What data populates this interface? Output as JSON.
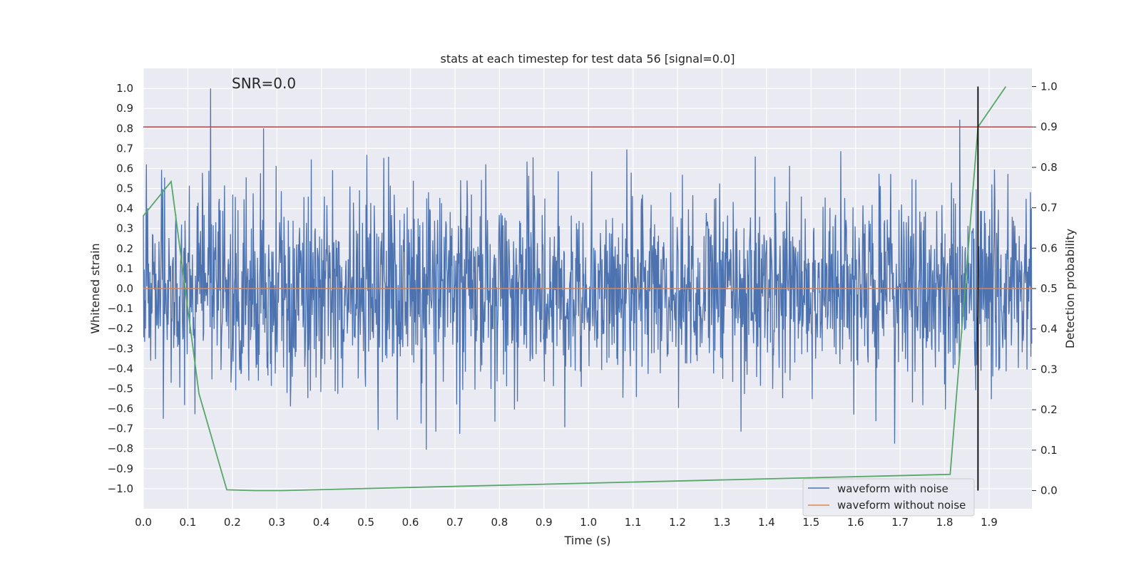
{
  "chart_data": {
    "type": "line",
    "title": "stats at each timestep for test data 56 [signal=0.0]",
    "xlabel": "Time (s)",
    "ylabel": "Whitened strain",
    "ylabel_right": "Detection probability",
    "annotation": "SNR=0.0",
    "xlim": [
      0.0,
      1.9961
    ],
    "ylim": [
      -1.1,
      1.1
    ],
    "ylim_right": [
      -0.045,
      1.045
    ],
    "x_ticks": [
      0.0,
      0.1,
      0.2,
      0.3,
      0.4,
      0.5,
      0.6,
      0.7,
      0.8,
      0.9,
      1.0,
      1.1,
      1.2,
      1.3,
      1.4,
      1.5,
      1.6,
      1.7,
      1.8,
      1.9
    ],
    "x_tick_labels": [
      "0.0",
      "0.1",
      "0.2",
      "0.3",
      "0.4",
      "0.5",
      "0.6",
      "0.7",
      "0.8",
      "0.9",
      "1.0",
      "1.1",
      "1.2",
      "1.3",
      "1.4",
      "1.5",
      "1.6",
      "1.7",
      "1.8",
      "1.9"
    ],
    "y_ticks": [
      1.0,
      0.9,
      0.8,
      0.7,
      0.6,
      0.5,
      0.4,
      0.3,
      0.2,
      0.1,
      0.0,
      -0.1,
      -0.2,
      -0.3,
      -0.4,
      -0.5,
      -0.6,
      -0.7,
      -0.8,
      -0.9,
      -1.0
    ],
    "y_tick_labels": [
      "1.0",
      "0.9",
      "0.8",
      "0.7",
      "0.6",
      "0.5",
      "0.4",
      "0.3",
      "0.2",
      "0.1",
      "0.0",
      "−0.1",
      "−0.2",
      "−0.3",
      "−0.4",
      "−0.5",
      "−0.6",
      "−0.7",
      "−0.8",
      "−0.9",
      "−1.0"
    ],
    "y_right_ticks": [
      1.0,
      0.9,
      0.8,
      0.7,
      0.6,
      0.5,
      0.4,
      0.3,
      0.2,
      0.1,
      0.0
    ],
    "y_right_tick_labels": [
      "1.0",
      "0.9",
      "0.8",
      "0.7",
      "0.6",
      "0.5",
      "0.4",
      "0.3",
      "0.2",
      "0.1",
      "0.0"
    ],
    "series": [
      {
        "name": "waveform with noise",
        "color": "#4c72b0",
        "axis": "left",
        "noise": {
          "n_points": 2048,
          "seed": 56,
          "dt": 0.000975,
          "sigma": 0.24,
          "clip": 1.0
        }
      },
      {
        "name": "waveform without noise",
        "color": "#dd8452",
        "axis": "left",
        "x": [
          0.0,
          1.9961
        ],
        "y": [
          0.0,
          0.0
        ]
      },
      {
        "name": "detection probability",
        "color": "#55a868",
        "axis": "right",
        "x": [
          0.0,
          0.0625,
          0.125,
          0.1875,
          0.25,
          0.3125,
          1.8125,
          1.875,
          1.9375
        ],
        "y": [
          0.68,
          0.765,
          0.24,
          0.002,
          0.0,
          0.0,
          0.04,
          0.9,
          1.0
        ]
      }
    ],
    "threshold_line": {
      "axis": "right",
      "value": 0.9,
      "color": "#c44e52"
    },
    "detection_marker": {
      "x": 1.875,
      "y_from": 0.0,
      "y_to": 1.0,
      "axis": "right",
      "color": "#000000"
    },
    "legend": {
      "position": "lower-right",
      "entries": [
        {
          "label": "waveform with noise",
          "color": "#4c72b0"
        },
        {
          "label": "waveform without noise",
          "color": "#dd8452"
        }
      ]
    },
    "grid": true,
    "background": "#eaeaf2"
  }
}
